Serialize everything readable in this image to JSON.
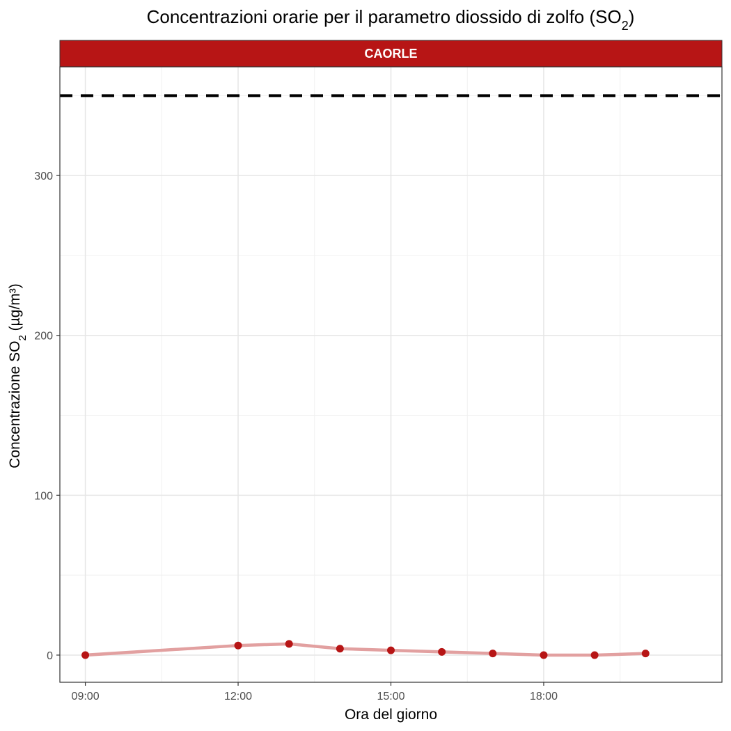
{
  "chart_data": {
    "type": "line",
    "title": "Concentrazioni orarie per il parametro diossido di zolfo (SO₂)",
    "title_parts": {
      "main": "Concentrazioni orarie per il parametro diossido di zolfo (SO",
      "sub": "2",
      "end": ")"
    },
    "facet_label": "CAORLE",
    "xlabel": "Ora del giorno",
    "ylabel": "Concentrazione SO₂ (µg/m³)",
    "ylabel_parts": {
      "main": "Concentrazione SO",
      "sub": "2",
      "end": " (µg/m³)"
    },
    "x_ticks": [
      "09:00",
      "12:00",
      "15:00",
      "18:00"
    ],
    "x_tick_hours": [
      9,
      12,
      15,
      18
    ],
    "y_ticks": [
      0,
      100,
      200,
      300
    ],
    "xlim_hours": [
      8.5,
      21.5
    ],
    "ylim": [
      -17,
      368
    ],
    "threshold": 350,
    "series": [
      {
        "x": [
          "09:00",
          "12:00",
          "13:00",
          "14:00",
          "15:00",
          "16:00",
          "17:00",
          "18:00",
          "19:00",
          "20:00"
        ],
        "x_hours": [
          9,
          12,
          13,
          14,
          15,
          16,
          17,
          18,
          19,
          20
        ],
        "values": [
          0,
          6,
          7,
          4,
          3,
          2,
          1,
          0,
          0,
          1
        ]
      }
    ],
    "grid": true,
    "colors": {
      "point": "#b71515",
      "line": "#e2a0a0",
      "strip_fill": "#b71515",
      "threshold": "#000000"
    }
  }
}
